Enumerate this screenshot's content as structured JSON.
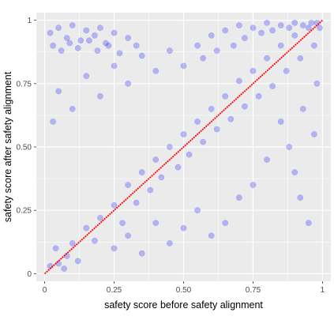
{
  "chart_data": {
    "type": "scatter",
    "title": "",
    "xlabel": "safety score before safety alignment",
    "ylabel": "safety score after safety alignment",
    "xlim": [
      -0.03,
      1.03
    ],
    "ylim": [
      -0.03,
      1.03
    ],
    "x_ticks": [
      0,
      0.25,
      0.5,
      0.75,
      1
    ],
    "x_tick_labels": [
      "0",
      "0.25",
      "0.50",
      "0.75",
      "1"
    ],
    "y_ticks": [
      0,
      0.25,
      0.5,
      0.75,
      1
    ],
    "y_tick_labels": [
      "0",
      "0.25",
      "0.50",
      "0.75",
      "1"
    ],
    "grid": true,
    "point_color": "#0000ff",
    "point_opacity": 0.08,
    "panel_background": "#ebebeb",
    "gridline_color": "#ffffff",
    "reference_line": {
      "x": [
        0,
        1
      ],
      "y": [
        0,
        1
      ],
      "color": "#ff0000",
      "style": "dotted"
    },
    "series": [
      {
        "points": [
          [
            0.02,
            0.03
          ],
          [
            0.05,
            0.04
          ],
          [
            0.08,
            0.07
          ],
          [
            0.1,
            0.12
          ],
          [
            0.04,
            0.1
          ],
          [
            0.12,
            0.05
          ],
          [
            0.15,
            0.18
          ],
          [
            0.18,
            0.13
          ],
          [
            0.2,
            0.22
          ],
          [
            0.07,
            0.02
          ],
          [
            0.25,
            0.27
          ],
          [
            0.28,
            0.2
          ],
          [
            0.3,
            0.35
          ],
          [
            0.33,
            0.28
          ],
          [
            0.35,
            0.4
          ],
          [
            0.38,
            0.33
          ],
          [
            0.4,
            0.45
          ],
          [
            0.42,
            0.38
          ],
          [
            0.45,
            0.5
          ],
          [
            0.48,
            0.42
          ],
          [
            0.5,
            0.55
          ],
          [
            0.52,
            0.47
          ],
          [
            0.55,
            0.6
          ],
          [
            0.57,
            0.52
          ],
          [
            0.6,
            0.65
          ],
          [
            0.62,
            0.57
          ],
          [
            0.65,
            0.7
          ],
          [
            0.67,
            0.61
          ],
          [
            0.7,
            0.76
          ],
          [
            0.72,
            0.66
          ],
          [
            0.75,
            0.8
          ],
          [
            0.77,
            0.7
          ],
          [
            0.8,
            0.85
          ],
          [
            0.82,
            0.74
          ],
          [
            0.85,
            0.9
          ],
          [
            0.87,
            0.8
          ],
          [
            0.9,
            0.94
          ],
          [
            0.92,
            0.85
          ],
          [
            0.95,
            0.97
          ],
          [
            0.97,
            0.9
          ],
          [
            0.98,
            0.99
          ],
          [
            0.99,
            0.97
          ],
          [
            0.96,
            0.99
          ],
          [
            0.93,
            0.98
          ],
          [
            0.9,
            0.99
          ],
          [
            0.88,
            0.97
          ],
          [
            0.85,
            0.98
          ],
          [
            0.82,
            0.96
          ],
          [
            0.8,
            0.99
          ],
          [
            0.78,
            0.95
          ],
          [
            0.75,
            0.97
          ],
          [
            0.72,
            0.93
          ],
          [
            0.7,
            0.98
          ],
          [
            0.68,
            0.9
          ],
          [
            0.65,
            0.96
          ],
          [
            0.62,
            0.88
          ],
          [
            0.6,
            0.94
          ],
          [
            0.57,
            0.85
          ],
          [
            0.55,
            0.9
          ],
          [
            0.5,
            0.82
          ],
          [
            0.45,
            0.88
          ],
          [
            0.4,
            0.8
          ],
          [
            0.35,
            0.86
          ],
          [
            0.3,
            0.75
          ],
          [
            0.25,
            0.82
          ],
          [
            0.2,
            0.7
          ],
          [
            0.15,
            0.78
          ],
          [
            0.1,
            0.65
          ],
          [
            0.05,
            0.72
          ],
          [
            0.03,
            0.6
          ],
          [
            0.02,
            0.95
          ],
          [
            0.05,
            0.97
          ],
          [
            0.08,
            0.93
          ],
          [
            0.1,
            0.98
          ],
          [
            0.13,
            0.92
          ],
          [
            0.15,
            0.96
          ],
          [
            0.18,
            0.94
          ],
          [
            0.2,
            0.97
          ],
          [
            0.22,
            0.91
          ],
          [
            0.25,
            0.95
          ],
          [
            0.03,
            0.9
          ],
          [
            0.06,
            0.88
          ],
          [
            0.09,
            0.91
          ],
          [
            0.12,
            0.89
          ],
          [
            0.16,
            0.92
          ],
          [
            0.19,
            0.88
          ],
          [
            0.23,
            0.9
          ],
          [
            0.27,
            0.87
          ],
          [
            0.3,
            0.93
          ],
          [
            0.33,
            0.9
          ],
          [
            0.85,
            0.6
          ],
          [
            0.88,
            0.5
          ],
          [
            0.9,
            0.4
          ],
          [
            0.92,
            0.3
          ],
          [
            0.95,
            0.2
          ],
          [
            0.8,
            0.45
          ],
          [
            0.75,
            0.35
          ],
          [
            0.7,
            0.3
          ],
          [
            0.65,
            0.2
          ],
          [
            0.6,
            0.15
          ],
          [
            0.55,
            0.25
          ],
          [
            0.5,
            0.18
          ],
          [
            0.45,
            0.12
          ],
          [
            0.4,
            0.2
          ],
          [
            0.35,
            0.08
          ],
          [
            0.3,
            0.15
          ],
          [
            0.25,
            0.1
          ],
          [
            0.97,
            0.55
          ],
          [
            0.93,
            0.65
          ],
          [
            0.98,
            0.75
          ]
        ]
      }
    ]
  }
}
